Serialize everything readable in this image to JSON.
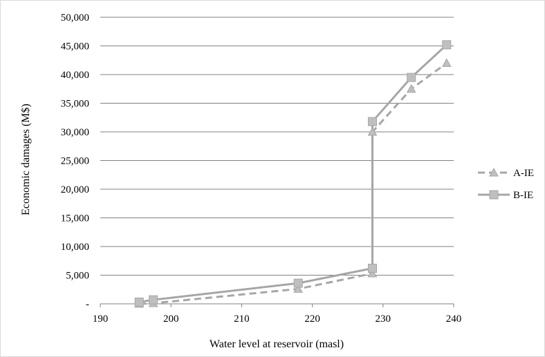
{
  "chart_data": {
    "type": "line",
    "xlabel": "Water level at reservoir (masl)",
    "ylabel": "Economic damages (M$)",
    "xlim": [
      190,
      240
    ],
    "ylim": [
      0,
      50000
    ],
    "x_ticks": [
      190,
      200,
      210,
      220,
      230,
      240
    ],
    "x_tick_labels": [
      "190",
      "200",
      "210",
      "220",
      "230",
      "240"
    ],
    "y_ticks": [
      0,
      5000,
      10000,
      15000,
      20000,
      25000,
      30000,
      35000,
      40000,
      45000,
      50000
    ],
    "y_tick_labels": [
      "-",
      "5,000",
      "10,000",
      "15,000",
      "20,000",
      "25,000",
      "30,000",
      "35,000",
      "40,000",
      "45,000",
      "50,000"
    ],
    "grid": "horizontal",
    "legend_position": "right",
    "series": [
      {
        "name": "A-IE",
        "line_style": "dashed",
        "marker": "triangle",
        "color": "#a6a6a6",
        "x": [
          195.5,
          197.5,
          218,
          228.5,
          228.5,
          234,
          239
        ],
        "y": [
          0,
          100,
          2600,
          5300,
          30000,
          37500,
          42000
        ]
      },
      {
        "name": "B-IE",
        "line_style": "solid",
        "marker": "square",
        "color": "#a6a6a6",
        "x": [
          195.5,
          197.5,
          218,
          228.5,
          228.5,
          234,
          239
        ],
        "y": [
          300,
          700,
          3600,
          6200,
          31800,
          39500,
          45200
        ]
      }
    ]
  }
}
